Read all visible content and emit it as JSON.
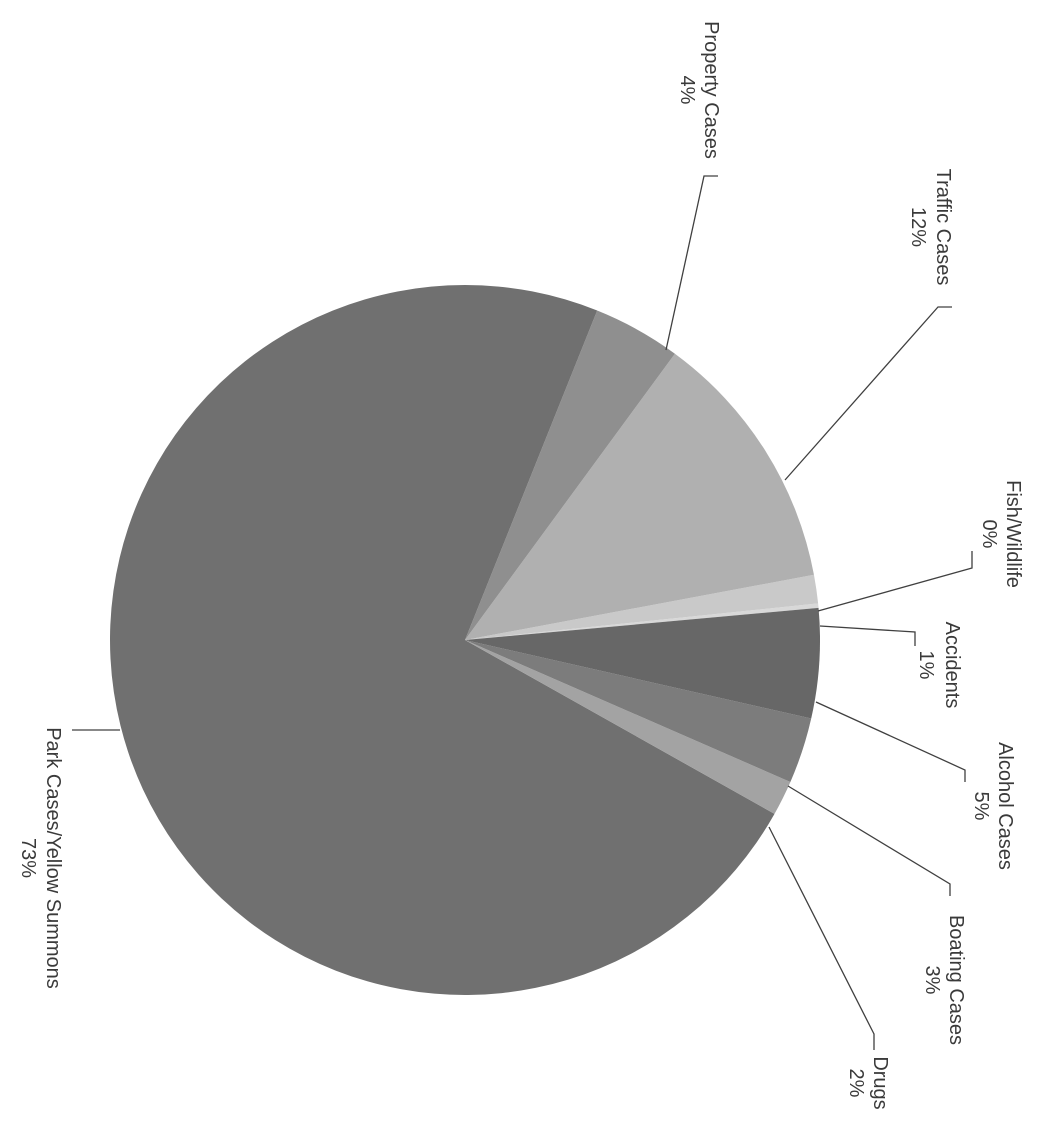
{
  "chart_data": {
    "type": "pie",
    "orientation": "rotated 90 degrees clockwise",
    "slices": [
      {
        "name": "Fish/Wildlife",
        "label": "0%",
        "value": 0.2,
        "color": "#d8d8d8"
      },
      {
        "name": "Accidents",
        "label": "1%",
        "value": 1.3,
        "color": "#c9c9c9"
      },
      {
        "name": "Traffic Cases",
        "label": "12%",
        "value": 12,
        "color": "#b0b0b0"
      },
      {
        "name": "Property Cases",
        "label": "4%",
        "value": 4,
        "color": "#8f8f8f"
      },
      {
        "name": "Park Cases/Yellow Summons",
        "label": "73%",
        "value": 73,
        "color": "#707070"
      },
      {
        "name": "Drugs",
        "label": "2%",
        "value": 1.6,
        "color": "#a3a3a3"
      },
      {
        "name": "Boating Cases",
        "label": "3%",
        "value": 3,
        "color": "#7c7c7c"
      },
      {
        "name": "Alcohol Cases",
        "label": "5%",
        "value": 5,
        "color": "#676767"
      }
    ]
  }
}
